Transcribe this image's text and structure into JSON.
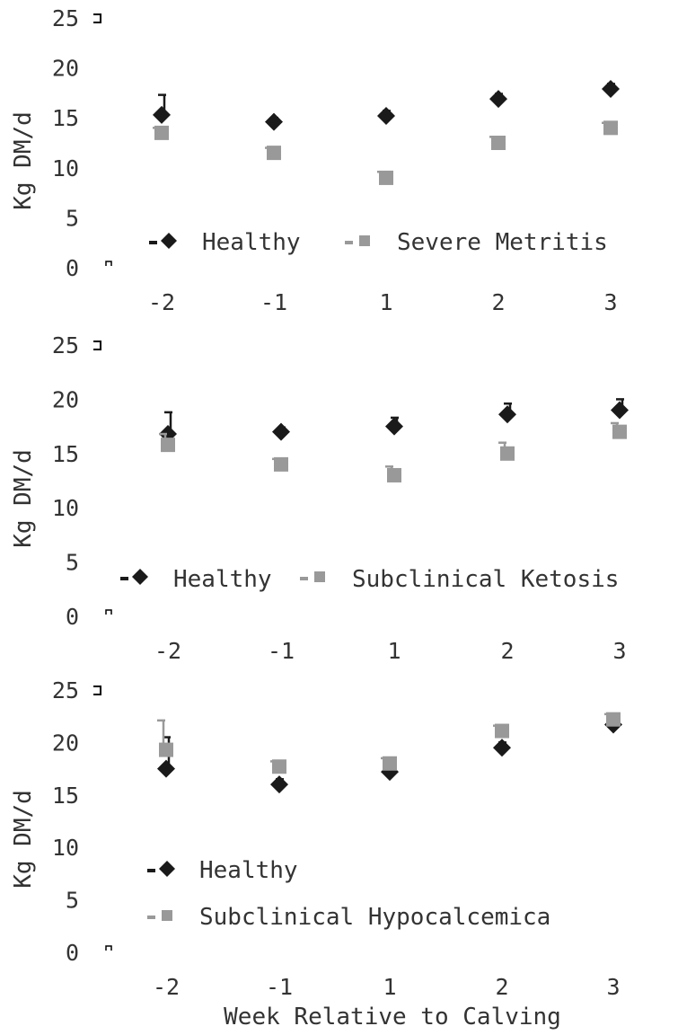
{
  "figure": {
    "xlabel": "Week Relative to Calving"
  },
  "colors": {
    "healthy": "#1a1a1a",
    "disease": "#999999",
    "text": "#333333"
  },
  "chart_data": [
    {
      "type": "scatter",
      "categories": [
        "-2",
        "-1",
        "1",
        "2",
        "3"
      ],
      "ylabel": "Kg DM/d",
      "yticks": [
        "0",
        "5",
        "10",
        "15",
        "20",
        "25"
      ],
      "ylim": [
        0,
        25
      ],
      "legend": "bottom-right",
      "series": [
        {
          "name": "Healthy",
          "values": [
            15.3,
            14.6,
            15.2,
            16.9,
            17.9
          ],
          "error": [
            2.0,
            0.4,
            0.5,
            0.5,
            0.5
          ]
        },
        {
          "name": "Severe Metritis",
          "values": [
            13.5,
            11.5,
            9.0,
            12.5,
            14.0
          ],
          "error": [
            0.5,
            0.5,
            0.6,
            0.6,
            0.5
          ]
        }
      ]
    },
    {
      "type": "scatter",
      "categories": [
        "-2",
        "-1",
        "1",
        "2",
        "3"
      ],
      "ylabel": "Kg DM/d",
      "yticks": [
        "0",
        "5",
        "10",
        "15",
        "20",
        "25"
      ],
      "ylim": [
        0,
        25
      ],
      "legend": "bottom-right",
      "series": [
        {
          "name": "Healthy",
          "values": [
            16.8,
            17.0,
            17.5,
            18.6,
            19.0
          ],
          "error": [
            2.0,
            0.4,
            0.8,
            1.0,
            1.0
          ]
        },
        {
          "name": "Subclinical Ketosis",
          "values": [
            15.8,
            14.0,
            13.0,
            15.0,
            17.0
          ],
          "error": [
            1.0,
            0.5,
            0.8,
            1.0,
            0.8
          ]
        }
      ]
    },
    {
      "type": "scatter",
      "categories": [
        "-2",
        "-1",
        "1",
        "2",
        "3"
      ],
      "ylabel": "Kg DM/d",
      "yticks": [
        "0",
        "5",
        "10",
        "15",
        "20",
        "25"
      ],
      "ylim": [
        0,
        25
      ],
      "legend": "bottom-left",
      "series": [
        {
          "name": "Healthy",
          "values": [
            17.5,
            16.0,
            17.2,
            19.5,
            21.7
          ],
          "error": [
            3.0,
            0.5,
            0.5,
            0.5,
            0.4
          ]
        },
        {
          "name": "Subclinical Hypocalcemica",
          "values": [
            19.3,
            17.7,
            18.0,
            21.1,
            22.2
          ],
          "error": [
            2.8,
            0.5,
            0.5,
            0.5,
            0.5
          ]
        }
      ]
    }
  ]
}
